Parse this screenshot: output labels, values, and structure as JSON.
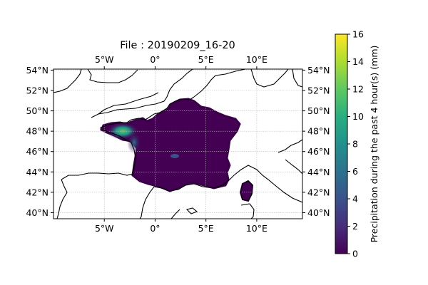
{
  "title": "File : 20190209_16-20",
  "map": {
    "lon_ticks": [
      {
        "value": -5,
        "label": "5°W"
      },
      {
        "value": 0,
        "label": "0°"
      },
      {
        "value": 5,
        "label": "5°E"
      },
      {
        "value": 10,
        "label": "10°E"
      }
    ],
    "lat_ticks": [
      {
        "value": 40,
        "label": "40°N"
      },
      {
        "value": 42,
        "label": "42°N"
      },
      {
        "value": 44,
        "label": "44°N"
      },
      {
        "value": 46,
        "label": "46°N"
      },
      {
        "value": 48,
        "label": "48°N"
      },
      {
        "value": 50,
        "label": "50°N"
      },
      {
        "value": 52,
        "label": "52°N"
      },
      {
        "value": 54,
        "label": "54°N"
      }
    ],
    "lon_range": [
      -10,
      14.5
    ],
    "lat_range": [
      39.4,
      54.1
    ],
    "gridlines": true,
    "precip_domain": "France (incl. Corsica)",
    "max_precip_region": "Brittany / west coast"
  },
  "colorbar": {
    "label": "Precipitation during the past 4 hour(s) (mm)",
    "ticks": [
      "0",
      "2",
      "4",
      "6",
      "8",
      "10",
      "12",
      "14",
      "16"
    ],
    "range": [
      0,
      16
    ],
    "colormap": "viridis"
  },
  "colors": {
    "low_precip": "#440154",
    "mid_precip": "#21918c",
    "high_precip": "#fde725"
  }
}
